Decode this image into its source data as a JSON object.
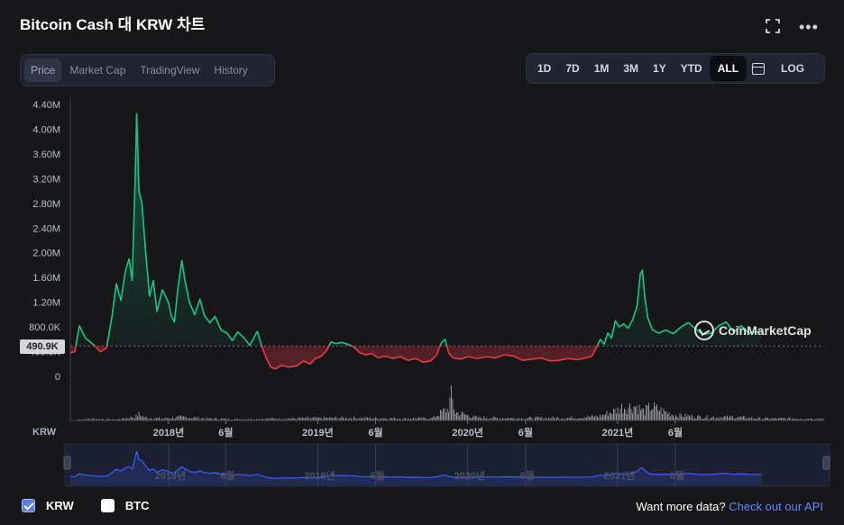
{
  "header": {
    "title": "Bitcoin Cash 대 KRW 차트"
  },
  "tabs": [
    {
      "label": "Price",
      "active": true
    },
    {
      "label": "Market Cap",
      "active": false
    },
    {
      "label": "TradingView",
      "active": false
    },
    {
      "label": "History",
      "active": false
    }
  ],
  "ranges": [
    {
      "label": "1D",
      "active": false
    },
    {
      "label": "7D",
      "active": false
    },
    {
      "label": "1M",
      "active": false
    },
    {
      "label": "3M",
      "active": false
    },
    {
      "label": "1Y",
      "active": false
    },
    {
      "label": "YTD",
      "active": false
    },
    {
      "label": "ALL",
      "active": true
    }
  ],
  "scale_button": "LOG",
  "current_price_label": "490.9K",
  "watermark": "CoinMarketCap",
  "volume_label": "KRW",
  "legend": {
    "krw": "KRW",
    "btc": "BTC"
  },
  "footer": {
    "prefix": "Want more data?",
    "link": "Check out our API"
  },
  "colors": {
    "up": "#16c784",
    "down": "#ea3943",
    "navigator": "#3861fb",
    "background": "#17171a"
  },
  "icons": {
    "fullscreen": "fullscreen-icon",
    "more": "more-icon",
    "calendar": "calendar-icon"
  },
  "chart_data": {
    "type": "line",
    "yticks": [
      "4.40M",
      "4.00M",
      "3.60M",
      "3.20M",
      "2.80M",
      "2.40M",
      "2.00M",
      "1.60M",
      "1.20M",
      "800.0K",
      "400.0K",
      "0"
    ],
    "ylim": [
      0,
      4400000
    ],
    "baseline": 490900,
    "xticks": [
      {
        "label": "2018년",
        "t": 0.1304
      },
      {
        "label": "6월",
        "t": 0.2062
      },
      {
        "label": "2019년",
        "t": 0.3283
      },
      {
        "label": "6월",
        "t": 0.4049
      },
      {
        "label": "2020년",
        "t": 0.5271
      },
      {
        "label": "6월",
        "t": 0.6039
      },
      {
        "label": "2021년",
        "t": 0.726
      },
      {
        "label": "6월",
        "t": 0.8026
      }
    ],
    "series": [
      {
        "name": "KRW",
        "points": [
          [
            0.0,
            380000
          ],
          [
            0.006,
            400000
          ],
          [
            0.012,
            820000
          ],
          [
            0.02,
            620000
          ],
          [
            0.03,
            520000
          ],
          [
            0.04,
            400000
          ],
          [
            0.048,
            460000
          ],
          [
            0.055,
            950000
          ],
          [
            0.061,
            1500000
          ],
          [
            0.067,
            1230000
          ],
          [
            0.073,
            1700000
          ],
          [
            0.078,
            1900000
          ],
          [
            0.082,
            1550000
          ],
          [
            0.086,
            3200000
          ],
          [
            0.088,
            4250000
          ],
          [
            0.091,
            3000000
          ],
          [
            0.095,
            2800000
          ],
          [
            0.1,
            2000000
          ],
          [
            0.105,
            1300000
          ],
          [
            0.11,
            1550000
          ],
          [
            0.115,
            1050000
          ],
          [
            0.122,
            1400000
          ],
          [
            0.13,
            1200000
          ],
          [
            0.134,
            980000
          ],
          [
            0.138,
            880000
          ],
          [
            0.143,
            1450000
          ],
          [
            0.148,
            1880000
          ],
          [
            0.152,
            1550000
          ],
          [
            0.158,
            1200000
          ],
          [
            0.165,
            1000000
          ],
          [
            0.172,
            1250000
          ],
          [
            0.178,
            980000
          ],
          [
            0.185,
            870000
          ],
          [
            0.192,
            970000
          ],
          [
            0.2,
            750000
          ],
          [
            0.208,
            700000
          ],
          [
            0.215,
            580000
          ],
          [
            0.222,
            720000
          ],
          [
            0.23,
            630000
          ],
          [
            0.238,
            500000
          ],
          [
            0.248,
            730000
          ],
          [
            0.255,
            450000
          ],
          [
            0.26,
            290000
          ],
          [
            0.266,
            150000
          ],
          [
            0.272,
            120000
          ],
          [
            0.28,
            180000
          ],
          [
            0.29,
            150000
          ],
          [
            0.3,
            170000
          ],
          [
            0.31,
            250000
          ],
          [
            0.318,
            200000
          ],
          [
            0.325,
            290000
          ],
          [
            0.333,
            330000
          ],
          [
            0.34,
            420000
          ],
          [
            0.346,
            560000
          ],
          [
            0.352,
            530000
          ],
          [
            0.36,
            550000
          ],
          [
            0.368,
            520000
          ],
          [
            0.376,
            480000
          ],
          [
            0.384,
            380000
          ],
          [
            0.392,
            350000
          ],
          [
            0.4,
            370000
          ],
          [
            0.408,
            300000
          ],
          [
            0.418,
            330000
          ],
          [
            0.428,
            290000
          ],
          [
            0.438,
            320000
          ],
          [
            0.448,
            260000
          ],
          [
            0.458,
            290000
          ],
          [
            0.468,
            230000
          ],
          [
            0.478,
            250000
          ],
          [
            0.486,
            350000
          ],
          [
            0.492,
            540000
          ],
          [
            0.497,
            600000
          ],
          [
            0.502,
            380000
          ],
          [
            0.508,
            300000
          ],
          [
            0.518,
            280000
          ],
          [
            0.528,
            320000
          ],
          [
            0.54,
            290000
          ],
          [
            0.552,
            320000
          ],
          [
            0.564,
            300000
          ],
          [
            0.576,
            350000
          ],
          [
            0.588,
            330000
          ],
          [
            0.6,
            260000
          ],
          [
            0.612,
            280000
          ],
          [
            0.624,
            300000
          ],
          [
            0.636,
            250000
          ],
          [
            0.648,
            260000
          ],
          [
            0.66,
            290000
          ],
          [
            0.672,
            270000
          ],
          [
            0.684,
            300000
          ],
          [
            0.692,
            330000
          ],
          [
            0.698,
            470000
          ],
          [
            0.703,
            600000
          ],
          [
            0.708,
            520000
          ],
          [
            0.713,
            700000
          ],
          [
            0.718,
            620000
          ],
          [
            0.723,
            900000
          ],
          [
            0.728,
            800000
          ],
          [
            0.734,
            850000
          ],
          [
            0.74,
            780000
          ],
          [
            0.746,
            920000
          ],
          [
            0.752,
            1150000
          ],
          [
            0.756,
            1650000
          ],
          [
            0.759,
            1720000
          ],
          [
            0.762,
            1300000
          ],
          [
            0.766,
            950000
          ],
          [
            0.772,
            760000
          ],
          [
            0.78,
            700000
          ],
          [
            0.79,
            750000
          ],
          [
            0.8,
            690000
          ],
          [
            0.81,
            800000
          ],
          [
            0.82,
            870000
          ],
          [
            0.83,
            760000
          ],
          [
            0.84,
            680000
          ],
          [
            0.85,
            700000
          ],
          [
            0.86,
            820000
          ],
          [
            0.87,
            880000
          ],
          [
            0.88,
            720000
          ],
          [
            0.89,
            820000
          ],
          [
            0.9,
            700000
          ],
          [
            0.91,
            720000
          ],
          [
            0.917,
            730000
          ]
        ]
      }
    ],
    "volume": [
      [
        0.0,
        0.15
      ],
      [
        0.03,
        0.25
      ],
      [
        0.06,
        0.15
      ],
      [
        0.086,
        0.55
      ],
      [
        0.09,
        0.9
      ],
      [
        0.1,
        0.4
      ],
      [
        0.12,
        0.3
      ],
      [
        0.15,
        0.5
      ],
      [
        0.18,
        0.3
      ],
      [
        0.22,
        0.2
      ],
      [
        0.28,
        0.3
      ],
      [
        0.33,
        0.35
      ],
      [
        0.38,
        0.4
      ],
      [
        0.44,
        0.3
      ],
      [
        0.48,
        0.35
      ],
      [
        0.495,
        1.4
      ],
      [
        0.5,
        1.6
      ],
      [
        0.505,
        3.5
      ],
      [
        0.51,
        1.2
      ],
      [
        0.54,
        0.4
      ],
      [
        0.6,
        0.35
      ],
      [
        0.66,
        0.4
      ],
      [
        0.7,
        0.6
      ],
      [
        0.725,
        1.5
      ],
      [
        0.73,
        1.9
      ],
      [
        0.75,
        2.1
      ],
      [
        0.76,
        1.3
      ],
      [
        0.77,
        2.0
      ],
      [
        0.8,
        0.8
      ],
      [
        0.84,
        0.5
      ],
      [
        0.88,
        0.5
      ],
      [
        0.917,
        0.3
      ]
    ]
  }
}
